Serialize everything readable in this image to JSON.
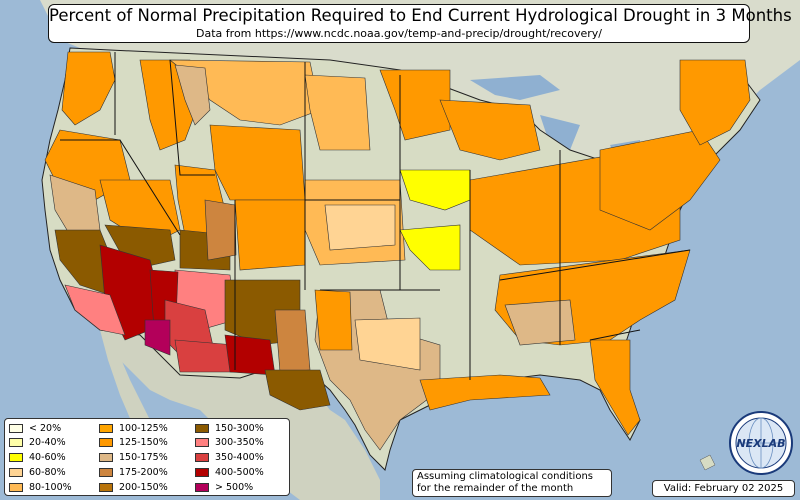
{
  "title": "Percent of Normal Precipitation Required to End Current Hydrological Drought in 3 Months",
  "subtitle": "Data from https://www.ncdc.noaa.gov/temp-and-precip/drought/recovery/",
  "legend": [
    {
      "label": "< 20%",
      "color": "#ffffe6"
    },
    {
      "label": "20-40%",
      "color": "#ffffa8"
    },
    {
      "label": "40-60%",
      "color": "#ffff00"
    },
    {
      "label": "60-80%",
      "color": "#ffd494"
    },
    {
      "label": "80-100%",
      "color": "#ffba55"
    },
    {
      "label": "100-125%",
      "color": "#ffa500"
    },
    {
      "label": "125-150%",
      "color": "#ff9900"
    },
    {
      "label": "150-175%",
      "color": "#deb887"
    },
    {
      "label": "175-200%",
      "color": "#cd853f"
    },
    {
      "label": "200-150%",
      "color": "#b8730a"
    },
    {
      "label": "150-300%",
      "color": "#8b5a00"
    },
    {
      "label": "300-350%",
      "color": "#ff8080"
    },
    {
      "label": "350-400%",
      "color": "#d94040"
    },
    {
      "label": "400-500%",
      "color": "#b30000"
    },
    {
      "label": "> 500%",
      "color": "#b3005a"
    }
  ],
  "note_line1": "Assuming climatological conditions",
  "note_line2": "for the remainder of the month",
  "valid": "Valid: February 02 2025",
  "logo": {
    "text": "NEXLAB",
    "icon": "globe-logo-icon"
  },
  "colors": {
    "ocean": "#9dbad6",
    "land": "#d7dcc4",
    "mexico": "#cfd2c0",
    "canada": "#d9dccc",
    "border": "#222222"
  }
}
